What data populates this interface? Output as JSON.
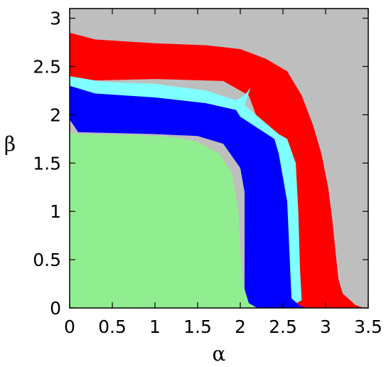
{
  "chart_data": {
    "type": "heatmap",
    "title": "",
    "xlabel": "α",
    "ylabel": "β",
    "xlim": [
      0,
      3.5
    ],
    "ylim": [
      0,
      3.1
    ],
    "x_ticks": [
      0,
      0.5,
      1,
      1.5,
      2,
      2.5,
      3,
      3.5
    ],
    "x_tick_labels": [
      "0",
      "0.5",
      "1",
      "1.5",
      "2",
      "2.5",
      "3",
      "3.5"
    ],
    "y_ticks": [
      0,
      0.5,
      1,
      1.5,
      2,
      2.5,
      3
    ],
    "y_tick_labels": [
      "0",
      "0.5",
      "1",
      "1.5",
      "2",
      "2.5",
      "3"
    ],
    "grid": false,
    "legend": "none",
    "colors": {
      "green": "#90ee90",
      "blue": "#0000ff",
      "light_blue": "#7fffff",
      "red": "#ff0000",
      "orange": "#ffa500",
      "gray": "#bebebe"
    },
    "regions": [
      {
        "color": "gray",
        "boundary": [
          [
            0,
            3.1
          ],
          [
            3.5,
            3.1
          ],
          [
            3.5,
            0
          ],
          [
            0,
            0
          ]
        ]
      },
      {
        "color": "red",
        "boundary": [
          [
            0,
            2.85
          ],
          [
            0.3,
            2.78
          ],
          [
            1.0,
            2.74
          ],
          [
            1.6,
            2.72
          ],
          [
            2.0,
            2.68
          ],
          [
            2.3,
            2.58
          ],
          [
            2.55,
            2.45
          ],
          [
            2.72,
            2.2
          ],
          [
            2.85,
            1.9
          ],
          [
            2.95,
            1.6
          ],
          [
            3.03,
            1.25
          ],
          [
            3.08,
            0.9
          ],
          [
            3.12,
            0.55
          ],
          [
            3.15,
            0.3
          ],
          [
            3.2,
            0.15
          ],
          [
            3.35,
            0.03
          ],
          [
            3.45,
            0
          ],
          [
            2.6,
            0
          ],
          [
            2.4,
            0.8
          ],
          [
            2.35,
            1.6
          ],
          [
            2.1,
            2.2
          ],
          [
            1.8,
            2.35
          ],
          [
            1.0,
            2.37
          ],
          [
            0,
            2.35
          ]
        ]
      },
      {
        "color": "light_blue",
        "boundary": [
          [
            0,
            2.4
          ],
          [
            0.4,
            2.34
          ],
          [
            1.0,
            2.32
          ],
          [
            1.6,
            2.25
          ],
          [
            1.95,
            2.15
          ],
          [
            2.05,
            2.2
          ],
          [
            2.12,
            2.28
          ],
          [
            2.05,
            2.1
          ],
          [
            2.45,
            1.8
          ],
          [
            2.55,
            1.75
          ],
          [
            2.65,
            1.5
          ],
          [
            2.68,
            1.0
          ],
          [
            2.7,
            0.4
          ],
          [
            2.72,
            0.08
          ],
          [
            2.6,
            0.02
          ],
          [
            2.5,
            0.05
          ],
          [
            2.05,
            1.75
          ],
          [
            1.0,
            2.1
          ],
          [
            0,
            2.15
          ]
        ]
      },
      {
        "color": "blue",
        "boundary": [
          [
            0,
            2.3
          ],
          [
            0.3,
            2.22
          ],
          [
            1.0,
            2.18
          ],
          [
            1.6,
            2.12
          ],
          [
            1.95,
            2.05
          ],
          [
            2.0,
            1.98
          ],
          [
            2.4,
            1.75
          ],
          [
            2.45,
            1.6
          ],
          [
            2.55,
            1.1
          ],
          [
            2.58,
            0.5
          ],
          [
            2.6,
            0.1
          ],
          [
            2.7,
            0.02
          ],
          [
            2.8,
            0
          ],
          [
            2.05,
            0
          ],
          [
            2.05,
            0.2
          ],
          [
            2.05,
            1.2
          ],
          [
            2.0,
            1.45
          ],
          [
            1.8,
            1.7
          ],
          [
            1.5,
            1.78
          ],
          [
            1.0,
            1.8
          ],
          [
            0.1,
            1.82
          ],
          [
            0,
            1.95
          ]
        ]
      },
      {
        "color": "green",
        "boundary": [
          [
            0,
            1.82
          ],
          [
            0.1,
            1.8
          ],
          [
            0.8,
            1.79
          ],
          [
            1.2,
            1.77
          ],
          [
            1.5,
            1.72
          ],
          [
            1.75,
            1.6
          ],
          [
            1.9,
            1.4
          ],
          [
            1.98,
            1.0
          ],
          [
            2.0,
            0.6
          ],
          [
            2.03,
            0.25
          ],
          [
            2.1,
            0.05
          ],
          [
            2.2,
            0
          ],
          [
            0,
            0
          ]
        ]
      }
    ]
  }
}
